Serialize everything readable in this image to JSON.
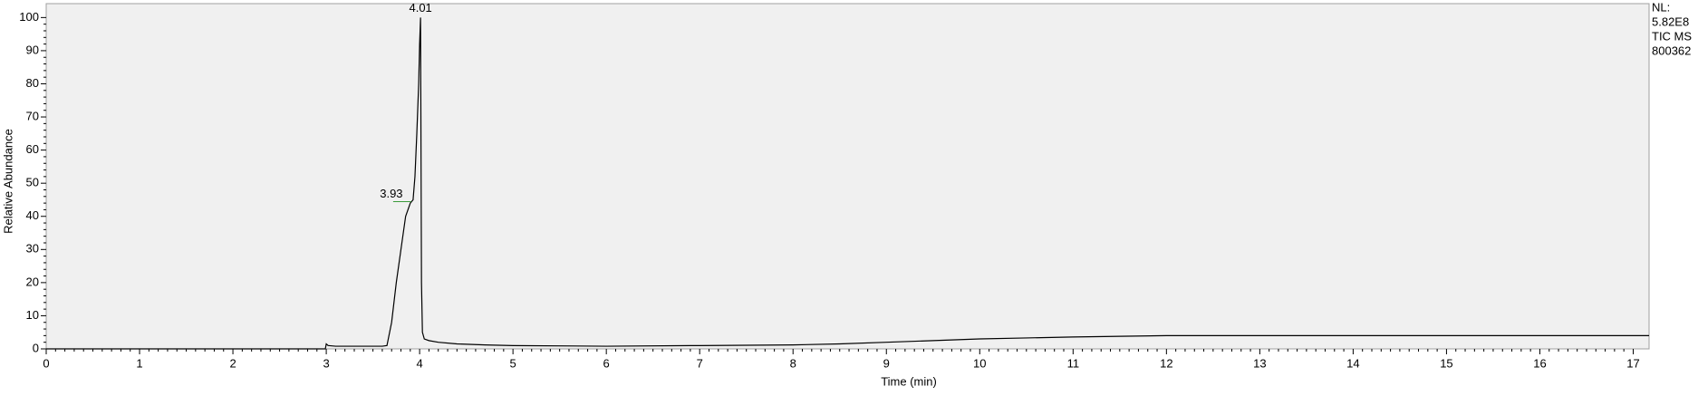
{
  "chart_data": {
    "type": "line",
    "xlabel": "Time (min)",
    "ylabel": "Relative Abundance",
    "info": [
      "NL:",
      "5.82E8",
      "TIC  MS",
      "800362"
    ],
    "x": [
      0,
      2.99,
      3.0,
      3.02,
      3.1,
      3.6,
      3.65,
      3.7,
      3.75,
      3.8,
      3.85,
      3.9,
      3.93,
      3.95,
      3.97,
      3.99,
      4.0,
      4.01,
      4.02,
      4.03,
      4.05,
      4.1,
      4.2,
      4.4,
      4.7,
      5,
      6,
      7,
      8,
      8.5,
      9,
      9.5,
      10,
      10.5,
      11,
      11.5,
      12,
      13,
      14,
      15,
      16,
      17.17
    ],
    "series": [
      {
        "name": "TIC",
        "color": "#000000",
        "values": [
          0,
          0,
          1.5,
          1,
          0.8,
          0.8,
          1,
          8,
          20,
          30,
          40,
          44,
          45,
          52,
          65,
          80,
          92,
          100,
          20,
          5,
          3,
          2.5,
          2,
          1.5,
          1.2,
          1,
          0.8,
          1,
          1.2,
          1.5,
          2,
          2.5,
          3,
          3.3,
          3.6,
          3.8,
          4,
          4,
          4,
          4,
          4,
          4
        ]
      }
    ],
    "annotations": [
      {
        "label": "4.01",
        "x": 4.01,
        "y": 100
      },
      {
        "label": "3.93",
        "x": 3.93,
        "y": 45
      }
    ],
    "xlim": [
      0,
      17.17
    ],
    "ylim": [
      0,
      104.2
    ],
    "xticks": [
      0,
      1,
      2,
      3,
      4,
      5,
      6,
      7,
      8,
      9,
      10,
      11,
      12,
      13,
      14,
      15,
      16,
      17
    ],
    "yticks": [
      0,
      10,
      20,
      30,
      40,
      50,
      60,
      70,
      80,
      90,
      100
    ],
    "background": "#f0f0f0"
  }
}
